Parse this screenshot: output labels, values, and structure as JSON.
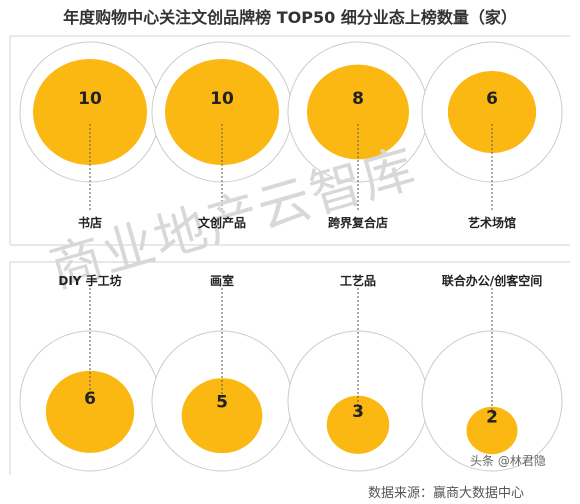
{
  "chart_data": {
    "type": "bubble",
    "title": "年度购物中心关注文创品牌榜 TOP50 细分业态上榜数量（家）",
    "categories": [
      "书店",
      "文创产品",
      "跨界复合店",
      "艺术场馆",
      "DIY 手工坊",
      "画室",
      "工艺品",
      "联合办公/创客空间"
    ],
    "values": [
      10,
      10,
      8,
      6,
      6,
      5,
      3,
      2
    ],
    "grid": false,
    "legend": "none"
  },
  "watermark": "商业地产云智库",
  "footer": {
    "source": "数据来源：赢商大数据中心",
    "credit": "头条 @林君隐"
  },
  "colors": {
    "bubble_fill": "#FBB813",
    "ring_stroke": "#cccccc",
    "separator": "#d0d0d0",
    "leader_line": "#555555"
  }
}
